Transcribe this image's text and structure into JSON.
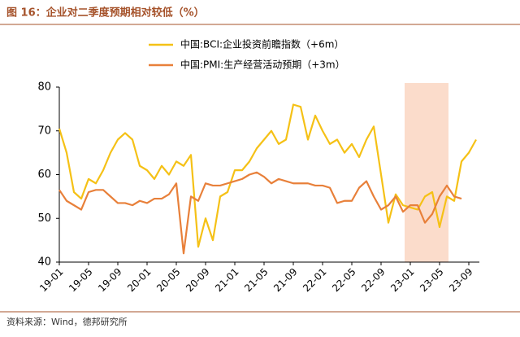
{
  "chart_data": {
    "type": "line",
    "title": "图 16：企业对二季度预期相对较低（%）",
    "source": "资料来源：Wind，德邦研究所",
    "categories": [
      "19-01",
      null,
      null,
      null,
      "19-05",
      null,
      null,
      null,
      "19-09",
      null,
      null,
      null,
      "20-01",
      null,
      null,
      null,
      "20-05",
      null,
      null,
      null,
      "20-09",
      null,
      null,
      null,
      "21-01",
      null,
      null,
      null,
      "21-05",
      null,
      null,
      null,
      "21-09",
      null,
      null,
      null,
      "22-01",
      null,
      null,
      null,
      "22-05",
      null,
      null,
      null,
      "22-09",
      null,
      null,
      null,
      "23-01",
      null,
      null,
      null,
      "23-05",
      null,
      null,
      null,
      "23-09",
      null
    ],
    "series": [
      {
        "name": "中国:BCI:企业投资前瞻指数（+6m）",
        "color": "#f5c116",
        "values": [
          70.5,
          65,
          56,
          54.5,
          59,
          58,
          61,
          65,
          68,
          69.5,
          68,
          62,
          61,
          59,
          62,
          60,
          63,
          62,
          64.5,
          43.5,
          50,
          45,
          55,
          56,
          61,
          61,
          63,
          66,
          68,
          70,
          67,
          68,
          76,
          75.5,
          68,
          73.5,
          70,
          67,
          68,
          65,
          67,
          64,
          68,
          71,
          60,
          49,
          55.5,
          53,
          52.5,
          52,
          55,
          56,
          48,
          55,
          54,
          63,
          65,
          68
        ]
      },
      {
        "name": "中国:PMI:生产经营活动预期（+3m）",
        "color": "#e8803a",
        "values": [
          56.5,
          54,
          53,
          52,
          56,
          56.5,
          56.5,
          55,
          53.5,
          53.5,
          53,
          54,
          53.5,
          54.5,
          54.5,
          55.5,
          58,
          42,
          55,
          54,
          58,
          57.5,
          57.5,
          58,
          58.5,
          59,
          60,
          60.5,
          59.5,
          58,
          59,
          58.5,
          58,
          58,
          58,
          57.5,
          57.5,
          57,
          53.5,
          54,
          54,
          57,
          58.5,
          55,
          52,
          53,
          55,
          51.5,
          53,
          53,
          49,
          51,
          55,
          57.5,
          55,
          54.5,
          null,
          null
        ]
      }
    ],
    "ylim": [
      40,
      80
    ],
    "yticks": [
      40,
      50,
      60,
      70,
      80
    ],
    "grid": false
  }
}
